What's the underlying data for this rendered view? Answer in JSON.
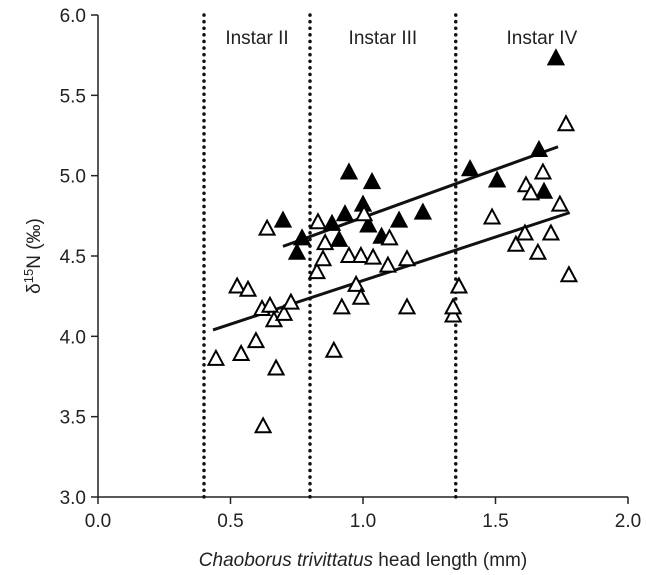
{
  "chart_data": {
    "type": "scatter",
    "x_label": {
      "italic": "Chaoborus trivittatus",
      "rest": " head length (mm)"
    },
    "y_label": {
      "pre": "δ",
      "sup": "15",
      "post": "N (‰)"
    },
    "xlim": [
      0,
      2
    ],
    "ylim": [
      3,
      6
    ],
    "xticks": [
      {
        "value": 0,
        "label": "0.0"
      },
      {
        "value": 0.5,
        "label": "0.5"
      },
      {
        "value": 1,
        "label": "1.0"
      },
      {
        "value": 1.5,
        "label": "1.5"
      },
      {
        "value": 2,
        "label": "2.0"
      }
    ],
    "yticks": [
      {
        "value": 3,
        "label": "3.0"
      },
      {
        "value": 3.5,
        "label": "3.5"
      },
      {
        "value": 4,
        "label": "4.0"
      },
      {
        "value": 4.5,
        "label": "4.5"
      },
      {
        "value": 5,
        "label": "5.0"
      },
      {
        "value": 5.5,
        "label": "5.5"
      },
      {
        "value": 6,
        "label": "6.0"
      }
    ],
    "vlines": [
      0.4,
      0.8,
      1.35
    ],
    "vline_labels": [
      "Instar II",
      "Instar III",
      "Instar IV"
    ],
    "series": [
      {
        "color": "#000000",
        "filled": true,
        "x": [
          0.698,
          0.751,
          0.77,
          0.883,
          0.91,
          0.932,
          0.947,
          1.0,
          1.02,
          1.034,
          1.07,
          1.136,
          1.226,
          1.404,
          1.506,
          1.664,
          1.683,
          1.728
        ],
        "values": [
          4.72,
          4.52,
          4.61,
          4.7,
          4.6,
          4.76,
          5.02,
          4.82,
          4.69,
          4.96,
          4.62,
          4.72,
          4.77,
          5.04,
          4.97,
          5.16,
          4.9,
          5.73
        ]
      },
      {
        "color": "#000000",
        "filled": false,
        "x": [
          0.445,
          0.525,
          0.54,
          0.566,
          0.596,
          0.619,
          0.623,
          0.638,
          0.649,
          0.664,
          0.672,
          0.702,
          0.728,
          0.826,
          0.83,
          0.849,
          0.857,
          0.89,
          0.92,
          0.947,
          0.974,
          0.992,
          0.992,
          1.004,
          1.038,
          1.094,
          1.1,
          1.166,
          1.166,
          1.34,
          1.34,
          1.362,
          1.487,
          1.577,
          1.611,
          1.615,
          1.634,
          1.66,
          1.679,
          1.709,
          1.743,
          1.766,
          1.777
        ],
        "values": [
          3.86,
          4.31,
          3.89,
          4.29,
          3.97,
          4.17,
          3.44,
          4.67,
          4.19,
          4.1,
          3.8,
          4.14,
          4.21,
          4.4,
          4.71,
          4.48,
          4.58,
          3.91,
          4.18,
          4.5,
          4.32,
          4.24,
          4.5,
          4.76,
          4.49,
          4.44,
          4.61,
          4.48,
          4.18,
          4.13,
          4.18,
          4.31,
          4.74,
          4.57,
          4.64,
          4.94,
          4.89,
          4.52,
          5.02,
          4.64,
          4.82,
          5.32,
          4.38
        ]
      }
    ],
    "trendlines": [
      {
        "x": [
          0.698,
          1.736
        ],
        "y": [
          4.56,
          5.18
        ]
      },
      {
        "x": [
          0.434,
          1.78
        ],
        "y": [
          4.04,
          4.77
        ]
      }
    ]
  }
}
